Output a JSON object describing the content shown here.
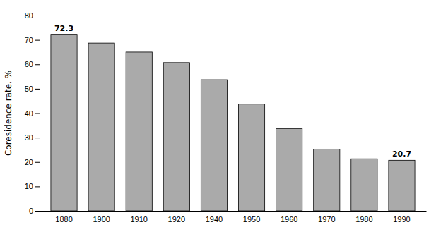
{
  "chart_data": {
    "type": "bar",
    "categories": [
      "1880",
      "1900",
      "1910",
      "1920",
      "1940",
      "1950",
      "1960",
      "1970",
      "1980",
      "1990"
    ],
    "values": [
      72.3,
      68.7,
      65.0,
      60.7,
      53.7,
      43.7,
      33.7,
      25.3,
      21.3,
      20.7
    ],
    "value_labels": [
      "72.3",
      null,
      null,
      null,
      null,
      null,
      null,
      null,
      null,
      "20.7"
    ],
    "color": "#aaaaaa",
    "ylabel": "Coresidence rate, %",
    "ylim": [
      0,
      80
    ],
    "yticks": [
      0,
      10,
      20,
      30,
      40,
      50,
      60,
      70,
      80
    ],
    "grid": false
  }
}
